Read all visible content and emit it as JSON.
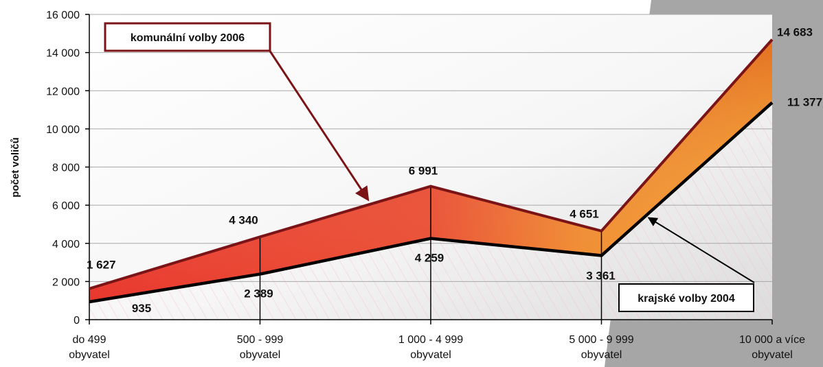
{
  "chart_data": {
    "type": "area",
    "categories": [
      [
        "do 499",
        "obyvatel"
      ],
      [
        "500 - 999",
        "obyvatel"
      ],
      [
        "1 000 - 4 999",
        "obyvatel"
      ],
      [
        "5 000 - 9 999",
        "obyvatel"
      ],
      [
        "10 000 a více",
        "obyvatel"
      ]
    ],
    "series": [
      {
        "name": "komunální volby 2006",
        "values": [
          1627,
          4340,
          6991,
          4651,
          14683
        ],
        "labels": [
          "1 627",
          "4 340",
          "6 991",
          "4 651",
          "14 683"
        ]
      },
      {
        "name": "krajské volby 2004",
        "values": [
          935,
          2389,
          4259,
          3361,
          11377
        ],
        "labels": [
          "935",
          "2 389",
          "4 259",
          "3 361",
          "11 377"
        ]
      }
    ],
    "ylabel": "počet voličů",
    "ylim": [
      0,
      16000
    ],
    "yticks": [
      0,
      2000,
      4000,
      6000,
      8000,
      10000,
      12000,
      14000,
      16000
    ],
    "ytick_labels": [
      "0",
      "2 000",
      "4 000",
      "6 000",
      "8 000",
      "10 000",
      "12 000",
      "14 000",
      "16 000"
    ],
    "grid": true,
    "colors": {
      "komunalni": "#7a1416",
      "krajske": "#000000",
      "fill_top": "#e83a2c",
      "fill_bottom": "#f5a023",
      "background_right": "#a6a6a6"
    }
  }
}
